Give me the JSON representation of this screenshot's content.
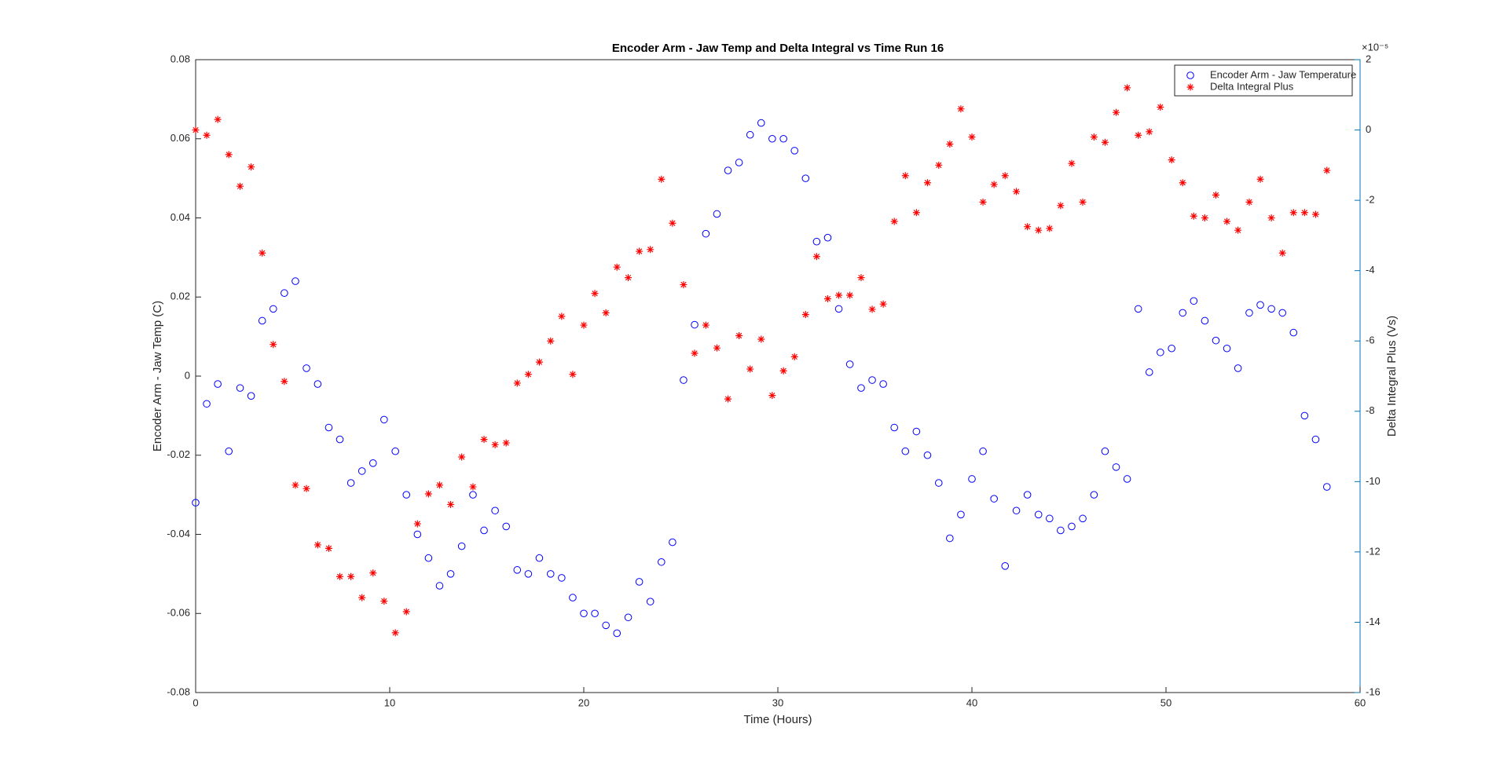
{
  "chart_data": {
    "type": "scatter",
    "title": "Encoder Arm - Jaw Temp and Delta Integral vs Time Run 16",
    "x_label": "Time (Hours)",
    "y_label": "Encoder Arm - Jaw Temp (C)",
    "y2_label": "Delta Integral Plus (Vs)",
    "y2_multiplier": "×10⁻⁵",
    "x": [
      0,
      0.57,
      1.14,
      1.71,
      2.29,
      2.86,
      3.43,
      4,
      4.57,
      5.14,
      5.71,
      6.29,
      6.86,
      7.43,
      8,
      8.57,
      9.14,
      9.71,
      10.29,
      10.86,
      11.43,
      12,
      12.57,
      13.14,
      13.71,
      14.29,
      14.86,
      15.43,
      16,
      16.57,
      17.14,
      17.71,
      18.29,
      18.86,
      19.43,
      20,
      20.57,
      21.14,
      21.71,
      22.29,
      22.86,
      23.43,
      24,
      24.57,
      25.14,
      25.71,
      26.29,
      26.86,
      27.43,
      28,
      28.57,
      29.14,
      29.71,
      30.29,
      30.86,
      31.43,
      32,
      32.57,
      33.14,
      33.71,
      34.29,
      34.86,
      35.43,
      36,
      36.57,
      37.14,
      37.71,
      38.29,
      38.86,
      39.43,
      40,
      40.57,
      41.14,
      41.71,
      42.29,
      42.86,
      43.43,
      44,
      44.57,
      45.14,
      45.71,
      46.29,
      46.86,
      47.43,
      48,
      48.57,
      49.14,
      49.71,
      50.29,
      50.86,
      51.43,
      52,
      52.57,
      53.14,
      53.71,
      54.29,
      54.86,
      55.43,
      56,
      56.57,
      57.14,
      57.71,
      58.29
    ],
    "series": [
      {
        "name": "Encoder Arm - Jaw Temperature",
        "color": "#0000ff",
        "marker": "circle",
        "axis": "y",
        "values": [
          -0.032,
          -0.007,
          -0.002,
          -0.019,
          -0.003,
          -0.005,
          0.014,
          0.017,
          0.021,
          0.024,
          0.002,
          -0.002,
          -0.013,
          -0.016,
          -0.027,
          -0.024,
          -0.022,
          -0.011,
          -0.019,
          -0.03,
          -0.04,
          -0.046,
          -0.053,
          -0.05,
          -0.043,
          -0.03,
          -0.039,
          -0.034,
          -0.038,
          -0.049,
          -0.05,
          -0.046,
          -0.05,
          -0.051,
          -0.056,
          -0.06,
          -0.06,
          -0.063,
          -0.065,
          -0.061,
          -0.052,
          -0.057,
          -0.047,
          -0.042,
          -0.001,
          0.013,
          0.036,
          0.041,
          0.052,
          0.054,
          0.061,
          0.064,
          0.06,
          0.06,
          0.057,
          0.05,
          0.034,
          0.035,
          0.017,
          0.003,
          -0.003,
          -0.001,
          -0.002,
          -0.013,
          -0.019,
          -0.014,
          -0.02,
          -0.027,
          -0.041,
          -0.035,
          -0.026,
          -0.019,
          -0.031,
          -0.048,
          -0.034,
          -0.03,
          -0.035,
          -0.036,
          -0.039,
          -0.038,
          -0.036,
          -0.03,
          -0.019,
          -0.023,
          -0.026,
          0.017,
          0.001,
          0.006,
          0.007,
          0.016,
          0.019,
          0.014,
          0.009,
          0.007,
          0.002,
          0.016,
          0.018,
          0.017,
          0.016,
          0.011,
          -0.01,
          -0.016,
          -0.028
        ]
      },
      {
        "name": "Delta Integral Plus",
        "color": "#ff0000",
        "marker": "asterisk",
        "axis": "y2",
        "values": [
          0.0,
          -0.15,
          0.3,
          -0.7,
          -1.6,
          -1.05,
          -3.5,
          -6.1,
          -7.15,
          -10.1,
          -10.2,
          -11.8,
          -11.9,
          -12.7,
          -12.7,
          -13.3,
          -12.6,
          -13.4,
          -14.3,
          -13.7,
          -11.2,
          -10.35,
          -10.1,
          -10.65,
          -9.3,
          -10.15,
          -8.8,
          -8.95,
          -8.9,
          -7.2,
          -6.95,
          -6.6,
          -6.0,
          -5.3,
          -6.95,
          -5.55,
          -4.65,
          -5.2,
          -3.9,
          -4.2,
          -3.45,
          -3.4,
          -1.4,
          -2.65,
          -4.4,
          -6.35,
          -5.55,
          -6.2,
          -7.65,
          -5.85,
          -6.8,
          -5.95,
          -7.55,
          -6.85,
          -6.45,
          -5.25,
          -3.6,
          -4.8,
          -4.7,
          -4.7,
          -4.2,
          -5.1,
          -4.95,
          -2.6,
          -1.3,
          -2.35,
          -1.5,
          -1.0,
          -0.4,
          0.6,
          -0.2,
          -2.05,
          -1.55,
          -1.3,
          -1.75,
          -2.75,
          -2.85,
          -2.8,
          -2.15,
          -0.95,
          -2.05,
          -0.2,
          -0.35,
          0.5,
          1.2,
          -0.15,
          -0.05,
          0.65,
          -0.85,
          -1.5,
          -2.45,
          -2.5,
          -1.85,
          -2.6,
          -2.85,
          -2.05,
          -1.4,
          -2.5,
          -3.5,
          -2.35,
          -2.35,
          -2.4,
          -1.15
        ]
      }
    ],
    "xlim": [
      0,
      60
    ],
    "xticks": [
      0,
      10,
      20,
      30,
      40,
      50,
      60
    ],
    "ylim": [
      -0.08,
      0.08
    ],
    "yticks": [
      -0.08,
      -0.06,
      -0.04,
      -0.02,
      0,
      0.02,
      0.04,
      0.06,
      0.08
    ],
    "y2lim": [
      -16,
      2
    ],
    "y2ticks": [
      -16,
      -14,
      -12,
      -10,
      -8,
      -6,
      -4,
      -2,
      0,
      2
    ],
    "y2_color": "#0072bd",
    "grid": false,
    "legend": "upper right"
  }
}
